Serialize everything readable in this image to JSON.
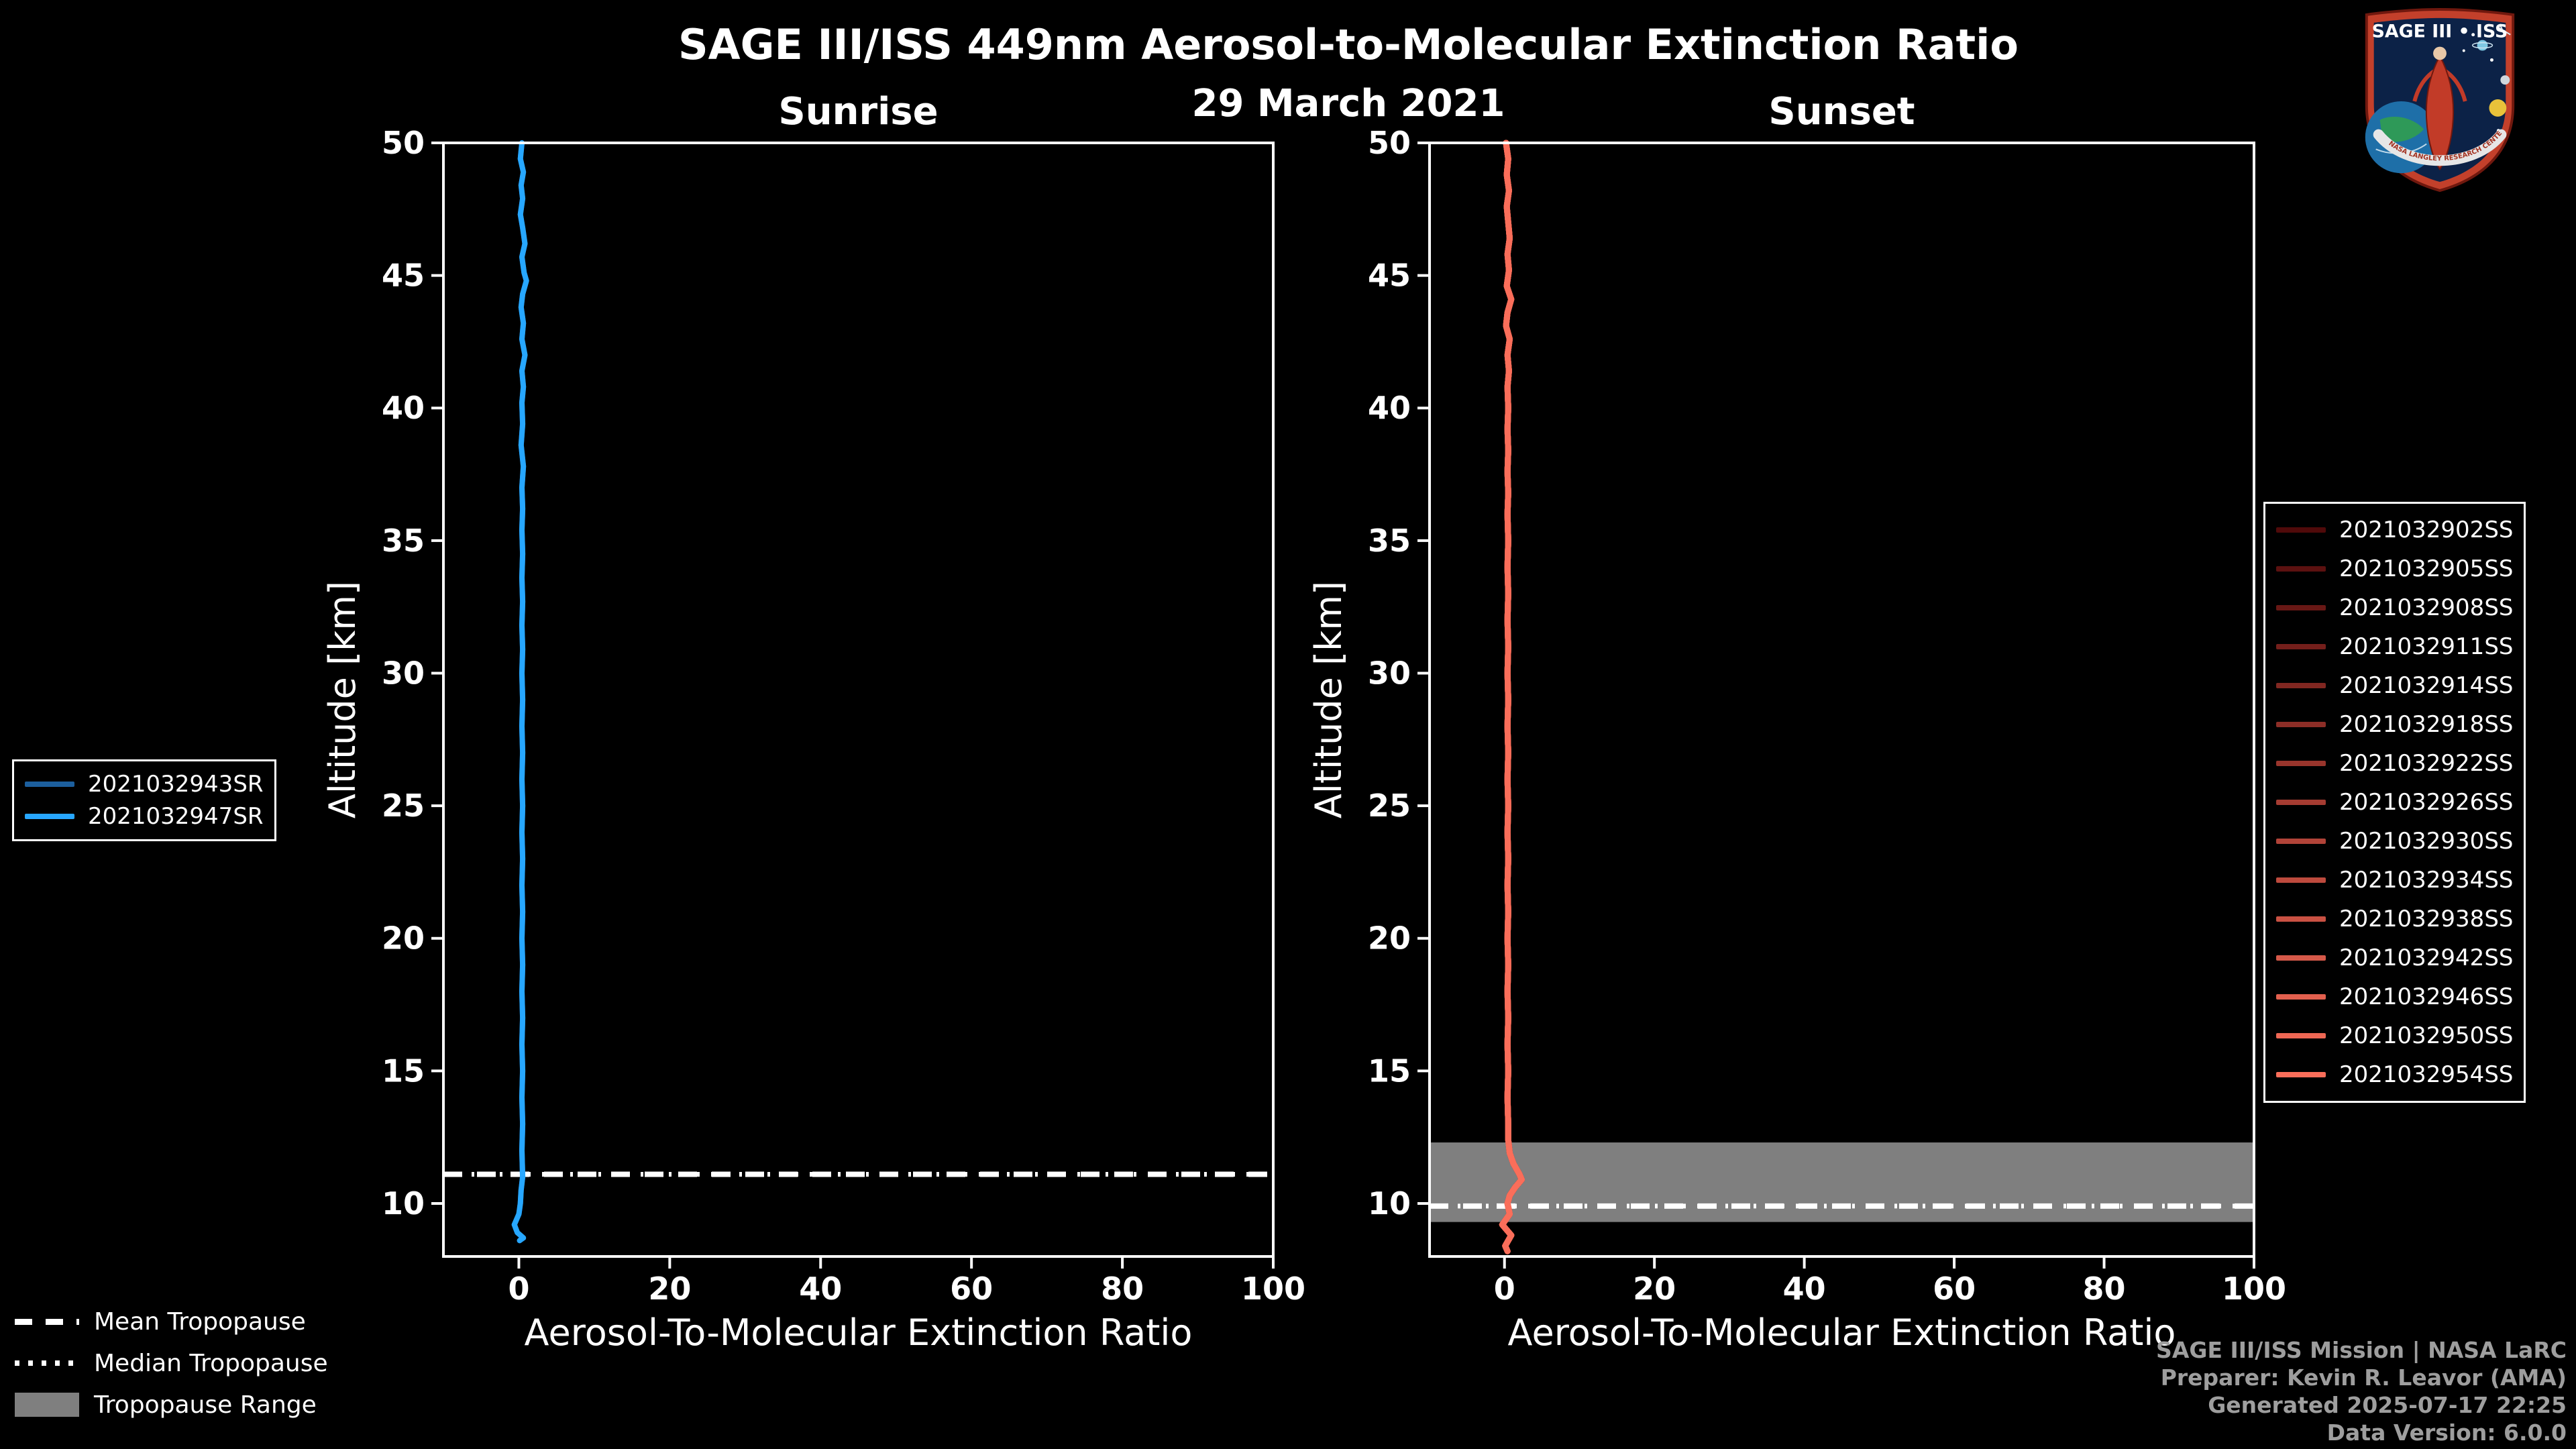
{
  "header": {
    "title": "SAGE III/ISS 449nm Aerosol-to-Molecular Extinction Ratio",
    "date": "29 March 2021"
  },
  "styles": {
    "background": "#000000",
    "foreground": "#ffffff",
    "band_color": "#7f7f7f",
    "credit_color": "#9e9e9e"
  },
  "chart_data": [
    {
      "type": "line",
      "title": "Sunrise",
      "xlabel": "Aerosol-To-Molecular Extinction Ratio",
      "ylabel": "Altitude [km]",
      "xlim": [
        -10,
        100
      ],
      "ylim": [
        8,
        50
      ],
      "xticks": [
        0,
        20,
        40,
        60,
        80,
        100
      ],
      "yticks": [
        10,
        15,
        20,
        25,
        30,
        35,
        40,
        45,
        50
      ],
      "grid": false,
      "legend_position": "outside-left",
      "mean_tropopause_km": 11.1,
      "median_tropopause_km": 11.1,
      "tropopause_range_km": null,
      "series": [
        {
          "name": "2021032943SR",
          "color": "#1c5f9e"
        },
        {
          "name": "2021032947SR",
          "color": "#27a7ff"
        }
      ],
      "profile": {
        "units": "[extinction_ratio, altitude_km]",
        "points": [
          [
            0.4,
            50
          ],
          [
            0.2,
            49.4
          ],
          [
            0.6,
            48.9
          ],
          [
            0.3,
            48.4
          ],
          [
            0.5,
            47.9
          ],
          [
            0.2,
            47.3
          ],
          [
            0.5,
            46.8
          ],
          [
            0.8,
            46.2
          ],
          [
            0.4,
            45.7
          ],
          [
            0.7,
            45.1
          ],
          [
            1.0,
            44.8
          ],
          [
            0.5,
            44.3
          ],
          [
            0.3,
            43.8
          ],
          [
            0.6,
            43.2
          ],
          [
            0.4,
            42.6
          ],
          [
            0.8,
            42.0
          ],
          [
            0.4,
            41.4
          ],
          [
            0.6,
            40.8
          ],
          [
            0.4,
            40.2
          ],
          [
            0.5,
            39.4
          ],
          [
            0.3,
            38.6
          ],
          [
            0.6,
            37.8
          ],
          [
            0.4,
            37.0
          ],
          [
            0.5,
            36.2
          ],
          [
            0.4,
            35.4
          ],
          [
            0.5,
            34.5
          ],
          [
            0.4,
            33.6
          ],
          [
            0.5,
            32.7
          ],
          [
            0.4,
            31.8
          ],
          [
            0.5,
            30.9
          ],
          [
            0.4,
            30.0
          ],
          [
            0.5,
            29.0
          ],
          [
            0.4,
            28.0
          ],
          [
            0.5,
            27.0
          ],
          [
            0.4,
            26.0
          ],
          [
            0.5,
            25.0
          ],
          [
            0.4,
            24.0
          ],
          [
            0.5,
            23.0
          ],
          [
            0.4,
            22.0
          ],
          [
            0.5,
            21.0
          ],
          [
            0.4,
            20.0
          ],
          [
            0.5,
            19.0
          ],
          [
            0.4,
            18.0
          ],
          [
            0.5,
            17.0
          ],
          [
            0.4,
            16.0
          ],
          [
            0.5,
            15.0
          ],
          [
            0.4,
            14.0
          ],
          [
            0.5,
            13.0
          ],
          [
            0.4,
            12.0
          ],
          [
            0.5,
            11.0
          ],
          [
            0.3,
            10.5
          ],
          [
            0.2,
            10.0
          ],
          [
            0.0,
            9.6
          ],
          [
            -0.6,
            9.2
          ],
          [
            -0.2,
            8.9
          ],
          [
            0.6,
            8.7
          ],
          [
            0.1,
            8.6
          ]
        ]
      }
    },
    {
      "type": "line",
      "title": "Sunset",
      "xlabel": "Aerosol-To-Molecular Extinction Ratio",
      "ylabel": "Altitude [km]",
      "xlim": [
        -10,
        100
      ],
      "ylim": [
        8,
        50
      ],
      "xticks": [
        0,
        20,
        40,
        60,
        80,
        100
      ],
      "yticks": [
        10,
        15,
        20,
        25,
        30,
        35,
        40,
        45,
        50
      ],
      "grid": false,
      "legend_position": "outside-right",
      "mean_tropopause_km": 9.9,
      "median_tropopause_km": 9.9,
      "tropopause_range_km": [
        9.3,
        12.3
      ],
      "series": [
        {
          "name": "2021032902SS",
          "color": "#500a0a"
        },
        {
          "name": "2021032905SS",
          "color": "#5c1110"
        },
        {
          "name": "2021032908SS",
          "color": "#681815"
        },
        {
          "name": "2021032911SS",
          "color": "#741f1b"
        },
        {
          "name": "2021032914SS",
          "color": "#812721"
        },
        {
          "name": "2021032918SS",
          "color": "#8d2e27"
        },
        {
          "name": "2021032922SS",
          "color": "#99352c"
        },
        {
          "name": "2021032926SS",
          "color": "#a53c32"
        },
        {
          "name": "2021032930SS",
          "color": "#b14338"
        },
        {
          "name": "2021032934SS",
          "color": "#bd4a3d"
        },
        {
          "name": "2021032938SS",
          "color": "#c95143"
        },
        {
          "name": "2021032942SS",
          "color": "#d55949"
        },
        {
          "name": "2021032946SS",
          "color": "#e2604e"
        },
        {
          "name": "2021032950SS",
          "color": "#ee6754"
        },
        {
          "name": "2021032954SS",
          "color": "#fa6e5a"
        }
      ],
      "profile": {
        "units": "[extinction_ratio, altitude_km]",
        "points": [
          [
            0.2,
            50
          ],
          [
            0.5,
            49.4
          ],
          [
            0.3,
            48.8
          ],
          [
            0.6,
            48.2
          ],
          [
            0.3,
            47.6
          ],
          [
            0.5,
            47.0
          ],
          [
            0.7,
            46.4
          ],
          [
            0.4,
            45.8
          ],
          [
            0.6,
            45.2
          ],
          [
            0.3,
            44.6
          ],
          [
            0.9,
            44.1
          ],
          [
            0.4,
            43.6
          ],
          [
            0.2,
            43.1
          ],
          [
            0.7,
            42.6
          ],
          [
            0.4,
            42.0
          ],
          [
            0.6,
            41.4
          ],
          [
            0.4,
            40.8
          ],
          [
            0.5,
            40.0
          ],
          [
            0.4,
            39.2
          ],
          [
            0.5,
            38.4
          ],
          [
            0.4,
            37.6
          ],
          [
            0.5,
            36.8
          ],
          [
            0.4,
            36.0
          ],
          [
            0.5,
            35.0
          ],
          [
            0.4,
            34.0
          ],
          [
            0.5,
            33.0
          ],
          [
            0.4,
            32.0
          ],
          [
            0.5,
            31.0
          ],
          [
            0.4,
            30.0
          ],
          [
            0.5,
            29.0
          ],
          [
            0.4,
            28.0
          ],
          [
            0.5,
            27.0
          ],
          [
            0.4,
            26.0
          ],
          [
            0.5,
            25.0
          ],
          [
            0.4,
            24.0
          ],
          [
            0.5,
            23.0
          ],
          [
            0.4,
            22.0
          ],
          [
            0.5,
            21.0
          ],
          [
            0.4,
            20.0
          ],
          [
            0.5,
            19.0
          ],
          [
            0.4,
            18.0
          ],
          [
            0.5,
            17.0
          ],
          [
            0.4,
            16.0
          ],
          [
            0.5,
            15.0
          ],
          [
            0.4,
            14.0
          ],
          [
            0.5,
            13.0
          ],
          [
            0.5,
            12.4
          ],
          [
            0.7,
            11.9
          ],
          [
            1.2,
            11.5
          ],
          [
            2.0,
            11.1
          ],
          [
            2.3,
            10.9
          ],
          [
            1.4,
            10.6
          ],
          [
            0.7,
            10.3
          ],
          [
            0.4,
            10.0
          ],
          [
            0.7,
            9.6
          ],
          [
            -0.3,
            9.2
          ],
          [
            0.9,
            8.8
          ],
          [
            0.1,
            8.4
          ],
          [
            0.4,
            8.2
          ]
        ]
      }
    }
  ],
  "tropopause_legend": {
    "items": [
      {
        "label": "Mean Tropopause",
        "style": "dashed"
      },
      {
        "label": "Median Tropopause",
        "style": "dotted"
      },
      {
        "label": "Tropopause Range",
        "style": "patch",
        "color": "#7f7f7f"
      }
    ]
  },
  "credits": {
    "lines": [
      "SAGE III/ISS Mission | NASA LaRC",
      "Preparer: Kevin R. Leavor (AMA)",
      "Generated 2025-07-17 22:25",
      "Data Version: 6.0.0"
    ]
  },
  "logo": {
    "title": "SAGE III • ISS",
    "banner": "NASA LANGLEY RESEARCH CENTER"
  }
}
